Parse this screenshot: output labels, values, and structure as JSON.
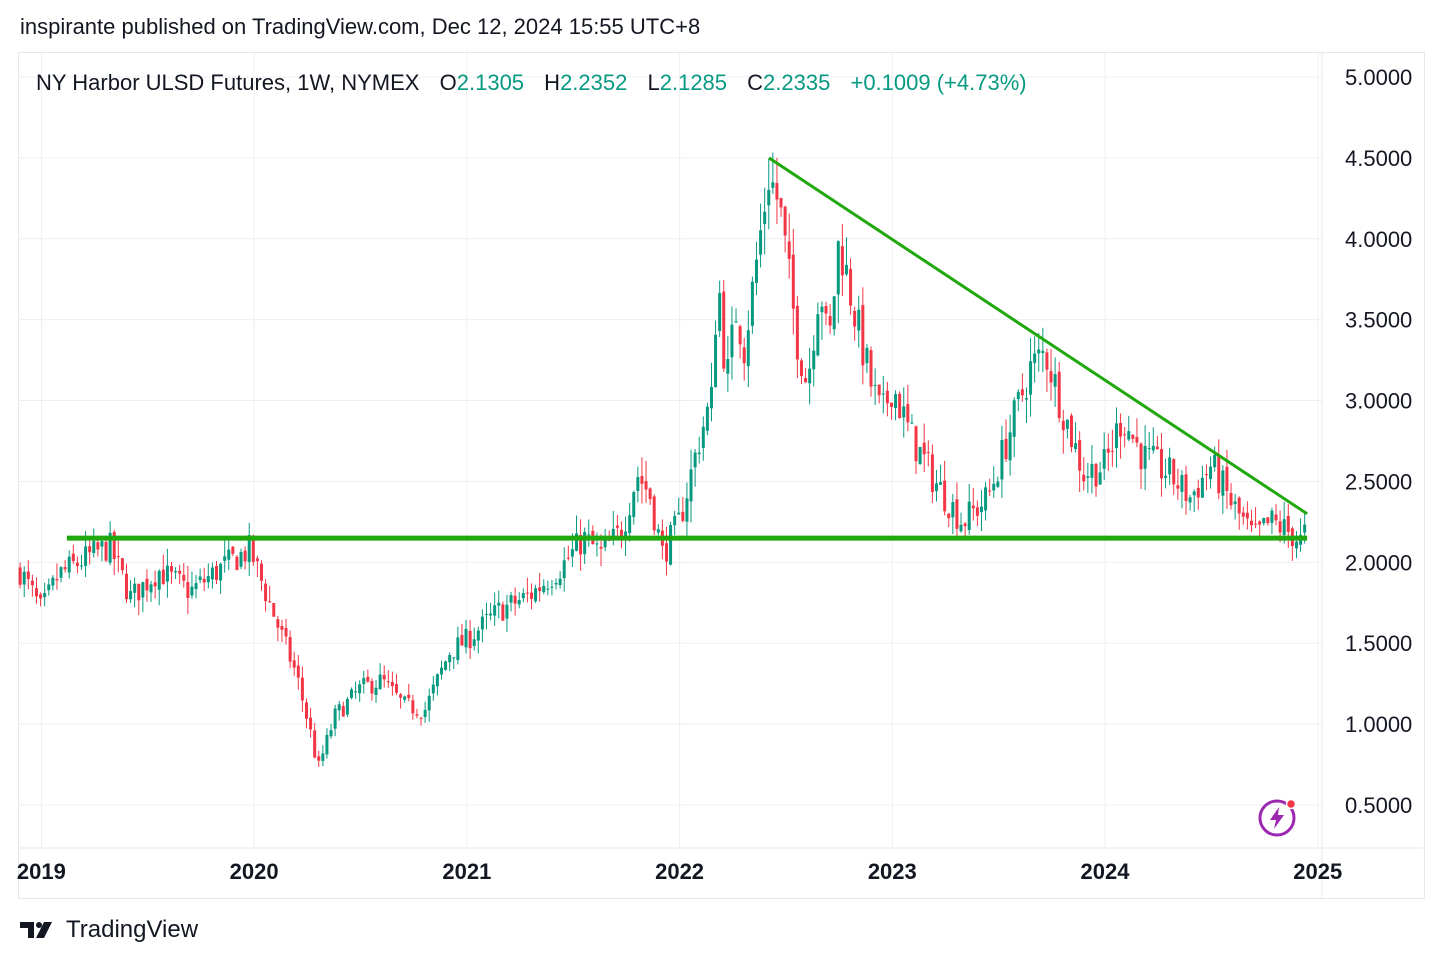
{
  "header": {
    "published": "inspirante published on TradingView.com, Dec 12, 2024 15:55 UTC+8"
  },
  "legend": {
    "symbol": "NY Harbor ULSD Futures, 1W, NYMEX",
    "open_label": "O",
    "open": "2.1305",
    "high_label": "H",
    "high": "2.2352",
    "low_label": "L",
    "low": "2.1285",
    "close_label": "C",
    "close": "2.2335",
    "change": "+0.1009 (+4.73%)"
  },
  "footer": {
    "brand": "TradingView",
    "logo_icon": "tradingview-logo-icon"
  },
  "colors": {
    "up": "#089981",
    "down": "#f23645",
    "trendline": "#22a80f",
    "grid": "#eeeff1",
    "accent": "#9c27b0"
  },
  "chart_data": {
    "type": "candlestick",
    "x_tick_labels": [
      "2019",
      "2020",
      "2021",
      "2022",
      "2023",
      "2024",
      "2025"
    ],
    "y_tick_labels": [
      "5.0000",
      "4.5000",
      "4.0000",
      "3.5000",
      "3.0000",
      "2.5000",
      "2.0000",
      "1.5000",
      "1.0000",
      "0.5000"
    ],
    "ylim": [
      0.5,
      5.0
    ],
    "xlim": [
      2018.89,
      2025.02
    ],
    "close_path": [
      [
        2018.9,
        1.95
      ],
      [
        2019.0,
        1.7
      ],
      [
        2019.08,
        1.92
      ],
      [
        2019.2,
        2.02
      ],
      [
        2019.32,
        2.1
      ],
      [
        2019.42,
        1.78
      ],
      [
        2019.55,
        1.95
      ],
      [
        2019.7,
        1.82
      ],
      [
        2019.85,
        1.97
      ],
      [
        2019.98,
        2.08
      ],
      [
        2020.1,
        1.65
      ],
      [
        2020.2,
        1.3
      ],
      [
        2020.27,
        0.92
      ],
      [
        2020.3,
        0.72
      ],
      [
        2020.38,
        1.05
      ],
      [
        2020.5,
        1.22
      ],
      [
        2020.6,
        1.27
      ],
      [
        2020.7,
        1.12
      ],
      [
        2020.8,
        1.08
      ],
      [
        2020.92,
        1.45
      ],
      [
        2021.0,
        1.52
      ],
      [
        2021.15,
        1.7
      ],
      [
        2021.3,
        1.8
      ],
      [
        2021.45,
        1.98
      ],
      [
        2021.55,
        2.15
      ],
      [
        2021.63,
        2.05
      ],
      [
        2021.73,
        2.2
      ],
      [
        2021.8,
        2.55
      ],
      [
        2021.86,
        2.42
      ],
      [
        2021.92,
        2.05
      ],
      [
        2022.0,
        2.25
      ],
      [
        2022.1,
        2.8
      ],
      [
        2022.15,
        3.0
      ],
      [
        2022.18,
        3.8
      ],
      [
        2022.22,
        3.1
      ],
      [
        2022.27,
        3.6
      ],
      [
        2022.3,
        3.3
      ],
      [
        2022.35,
        3.75
      ],
      [
        2022.42,
        4.4
      ],
      [
        2022.47,
        4.2
      ],
      [
        2022.55,
        3.4
      ],
      [
        2022.6,
        3.1
      ],
      [
        2022.66,
        3.75
      ],
      [
        2022.7,
        3.3
      ],
      [
        2022.75,
        4.0
      ],
      [
        2022.83,
        3.5
      ],
      [
        2022.9,
        3.1
      ],
      [
        2022.95,
        2.9
      ],
      [
        2023.0,
        3.1
      ],
      [
        2023.08,
        2.8
      ],
      [
        2023.2,
        2.5
      ],
      [
        2023.33,
        2.25
      ],
      [
        2023.45,
        2.4
      ],
      [
        2023.55,
        2.8
      ],
      [
        2023.65,
        3.2
      ],
      [
        2023.72,
        3.3
      ],
      [
        2023.8,
        2.95
      ],
      [
        2023.9,
        2.55
      ],
      [
        2024.0,
        2.6
      ],
      [
        2024.08,
        2.9
      ],
      [
        2024.18,
        2.65
      ],
      [
        2024.3,
        2.55
      ],
      [
        2024.4,
        2.4
      ],
      [
        2024.5,
        2.6
      ],
      [
        2024.6,
        2.35
      ],
      [
        2024.7,
        2.15
      ],
      [
        2024.78,
        2.25
      ],
      [
        2024.85,
        2.2
      ],
      [
        2024.92,
        2.13
      ],
      [
        2024.95,
        2.2335
      ]
    ],
    "annotations": [
      {
        "type": "horizontal_line",
        "y": 2.15,
        "x_start": 2019.12,
        "x_end": 2024.95
      },
      {
        "type": "trendline",
        "points": [
          [
            2022.42,
            4.5
          ],
          [
            2024.95,
            2.3
          ]
        ]
      }
    ]
  }
}
